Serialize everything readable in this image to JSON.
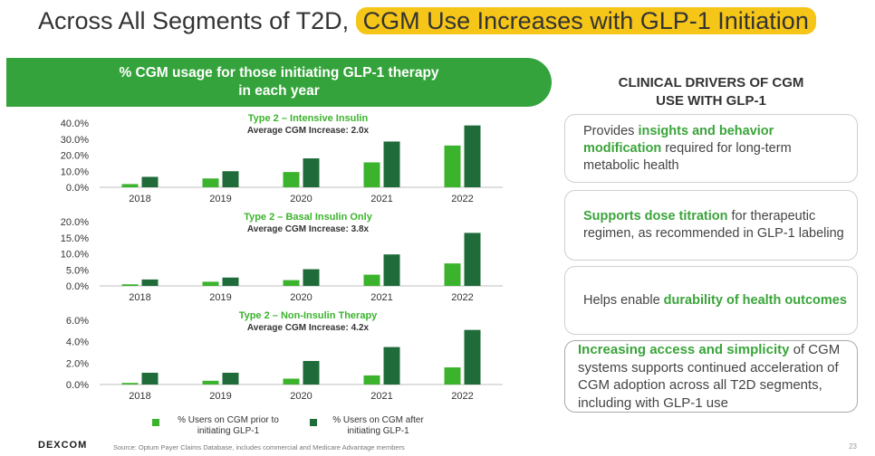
{
  "header": {
    "title_prefix": "Across All Segments of T2D, ",
    "title_highlight": "CGM Use Increases with GLP-1 Initiation"
  },
  "banner": {
    "line1": "% CGM usage for those initiating GLP-1 therapy",
    "line2": "in each year"
  },
  "colors": {
    "prior": "#3cb32d",
    "after": "#1f6b3a",
    "banner": "#35a33b",
    "highlight": "#f5c518",
    "accent_text": "#3aa43a"
  },
  "chart_data": [
    {
      "type": "bar",
      "title": "Type 2 – Intensive Insulin",
      "subtitle": "Average CGM Increase: 2.0x",
      "categories": [
        "2018",
        "2019",
        "2020",
        "2021",
        "2022"
      ],
      "yticks": [
        "40.0%",
        "30.0%",
        "20.0%",
        "10.0%",
        "0.0%"
      ],
      "ylim": [
        0,
        40
      ],
      "series": [
        {
          "name": "% Users on CGM prior to initiating GLP-1",
          "values": [
            2.0,
            5.5,
            9.5,
            15.5,
            26.0
          ]
        },
        {
          "name": "% Users on CGM after initiating GLP-1",
          "values": [
            6.5,
            10.0,
            18.0,
            28.5,
            38.5
          ]
        }
      ]
    },
    {
      "type": "bar",
      "title": "Type 2 – Basal Insulin Only",
      "subtitle": "Average CGM Increase: 3.8x",
      "categories": [
        "2018",
        "2019",
        "2020",
        "2021",
        "2022"
      ],
      "yticks": [
        "20.0%",
        "15.0%",
        "10.0%",
        "5.0%",
        "0.0%"
      ],
      "ylim": [
        0,
        20
      ],
      "series": [
        {
          "name": "% Users on CGM prior to initiating GLP-1",
          "values": [
            0.5,
            1.3,
            1.8,
            3.5,
            7.0
          ]
        },
        {
          "name": "% Users on CGM after initiating GLP-1",
          "values": [
            2.0,
            2.6,
            5.2,
            9.8,
            16.5
          ]
        }
      ]
    },
    {
      "type": "bar",
      "title": "Type 2 – Non-Insulin Therapy",
      "subtitle": "Average CGM Increase: 4.2x",
      "categories": [
        "2018",
        "2019",
        "2020",
        "2021",
        "2022"
      ],
      "yticks": [
        "6.0%",
        "4.0%",
        "2.0%",
        "0.0%"
      ],
      "ylim": [
        0,
        6
      ],
      "series": [
        {
          "name": "% Users on CGM prior to initiating GLP-1",
          "values": [
            0.15,
            0.35,
            0.55,
            0.85,
            1.6
          ]
        },
        {
          "name": "% Users on CGM after initiating GLP-1",
          "values": [
            1.1,
            1.1,
            2.2,
            3.5,
            5.1
          ]
        }
      ]
    }
  ],
  "legend": {
    "prior_line1": "% Users on CGM prior to",
    "prior_line2": "initiating GLP-1",
    "after_line1": "% Users on CGM after",
    "after_line2": "initiating GLP-1"
  },
  "drivers": {
    "title_line1": "CLINICAL DRIVERS OF CGM",
    "title_line2": "USE WITH GLP-1",
    "box1": {
      "pre": "Provides ",
      "bold": "insights and behavior modification",
      "post": " required for long-term metabolic health"
    },
    "box2": {
      "pre": "",
      "bold": "Supports dose titration",
      "post": " for therapeutic regimen, as recommended in GLP-1 labeling"
    },
    "box3": {
      "pre": "Helps enable ",
      "bold": "durability of health outcomes",
      "post": ""
    },
    "box4": {
      "pre": "",
      "bold": "Increasing access and simplicity",
      "post": " of CGM systems supports continued acceleration of CGM adoption across all T2D segments, including with GLP-1 use"
    }
  },
  "footer": {
    "logo": "DEXCOM",
    "source": "Source: Optum Payer Claims Database, includes commercial and Medicare Advantage members",
    "page": "23"
  }
}
